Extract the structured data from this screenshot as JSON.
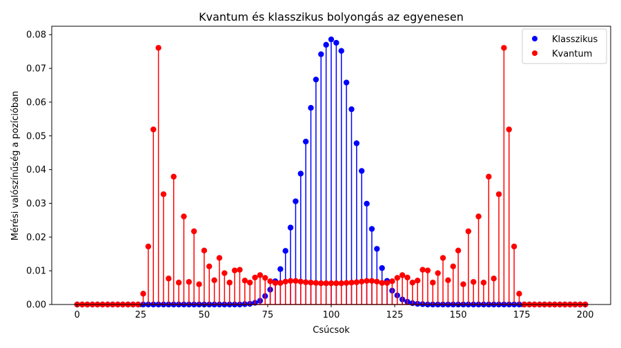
{
  "chart_data": {
    "type": "stem",
    "title": "Kvantum és klasszikus bolyongás az egyenesen",
    "xlabel": "Csúcsok",
    "ylabel": "Mérési valószínűség a pozícióban",
    "xlim": [
      -10,
      210
    ],
    "ylim": [
      0,
      0.0825
    ],
    "xticks": [
      0,
      25,
      50,
      75,
      100,
      125,
      150,
      175,
      200
    ],
    "xtick_labels": [
      "0",
      "25",
      "50",
      "75",
      "100",
      "125",
      "150",
      "175",
      "200"
    ],
    "yticks": [
      0.0,
      0.01,
      0.02,
      0.03,
      0.04,
      0.05,
      0.06,
      0.07,
      0.08
    ],
    "ytick_labels": [
      "0.00",
      "0.01",
      "0.02",
      "0.03",
      "0.04",
      "0.05",
      "0.06",
      "0.07",
      "0.08"
    ],
    "grid": false,
    "legend_position": "top-right",
    "x": [
      0,
      2,
      4,
      6,
      8,
      10,
      12,
      14,
      16,
      18,
      20,
      22,
      24,
      26,
      28,
      30,
      32,
      34,
      36,
      38,
      40,
      42,
      44,
      46,
      48,
      50,
      52,
      54,
      56,
      58,
      60,
      62,
      64,
      66,
      68,
      70,
      72,
      74,
      76,
      78,
      80,
      82,
      84,
      86,
      88,
      90,
      92,
      94,
      96,
      98,
      100,
      102,
      104,
      106,
      108,
      110,
      112,
      114,
      116,
      118,
      120,
      122,
      124,
      126,
      128,
      130,
      132,
      134,
      136,
      138,
      140,
      142,
      144,
      146,
      148,
      150,
      152,
      154,
      156,
      158,
      160,
      162,
      164,
      166,
      168,
      170,
      172,
      174,
      176,
      178,
      180,
      182,
      184,
      186,
      188,
      190,
      192,
      194,
      196,
      198,
      200
    ],
    "series": [
      {
        "name": "Klasszikus",
        "color": "#0000ff",
        "values": [
          0,
          0,
          0,
          0,
          0,
          0,
          0,
          0,
          0,
          0,
          0,
          0,
          0,
          0,
          0,
          0,
          0,
          0,
          0,
          0,
          0,
          0,
          0,
          0,
          0,
          0,
          0,
          0,
          0,
          0,
          0,
          0,
          0,
          0.0001,
          0.0002,
          0.0005,
          0.0011,
          0.0025,
          0.0044,
          0.0069,
          0.0105,
          0.0159,
          0.0228,
          0.0306,
          0.0388,
          0.0483,
          0.0583,
          0.0667,
          0.0742,
          0.077,
          0.0786,
          0.0776,
          0.0752,
          0.0658,
          0.0579,
          0.0478,
          0.0396,
          0.0299,
          0.0224,
          0.0165,
          0.0108,
          0.007,
          0.0041,
          0.0027,
          0.0015,
          0.0008,
          0.0004,
          0.0002,
          0.0001,
          0,
          0,
          0,
          0,
          0,
          0,
          0,
          0,
          0,
          0,
          0,
          0,
          0,
          0,
          0,
          0,
          0,
          0,
          0,
          0,
          0,
          0,
          0,
          0,
          0,
          0,
          0,
          0,
          0,
          0,
          0,
          0
        ]
      },
      {
        "name": "Kvantum",
        "color": "#ff0000",
        "values": [
          0,
          0,
          0,
          0,
          0,
          0,
          0,
          0,
          0,
          0,
          0,
          0,
          0,
          0.0032,
          0.0172,
          0.0519,
          0.0761,
          0.0327,
          0.0077,
          0.0379,
          0.0065,
          0.0261,
          0.0067,
          0.0217,
          0.006,
          0.016,
          0.0113,
          0.0072,
          0.0138,
          0.0093,
          0.0065,
          0.0101,
          0.0103,
          0.0071,
          0.0065,
          0.008,
          0.0087,
          0.0079,
          0.0069,
          0.0064,
          0.0064,
          0.0068,
          0.007,
          0.007,
          0.0068,
          0.0066,
          0.0065,
          0.0064,
          0.0063,
          0.0063,
          0.0063,
          0.0063,
          0.0063,
          0.0064,
          0.0065,
          0.0066,
          0.0068,
          0.007,
          0.007,
          0.0068,
          0.0064,
          0.0064,
          0.0069,
          0.0079,
          0.0087,
          0.008,
          0.0065,
          0.0071,
          0.0103,
          0.0101,
          0.0065,
          0.0093,
          0.0138,
          0.0072,
          0.0113,
          0.016,
          0.006,
          0.0217,
          0.0067,
          0.0261,
          0.0065,
          0.0379,
          0.0077,
          0.0327,
          0.0761,
          0.0519,
          0.0172,
          0.0032,
          0,
          0,
          0,
          0,
          0,
          0,
          0,
          0,
          0,
          0,
          0,
          0,
          0
        ]
      }
    ]
  }
}
